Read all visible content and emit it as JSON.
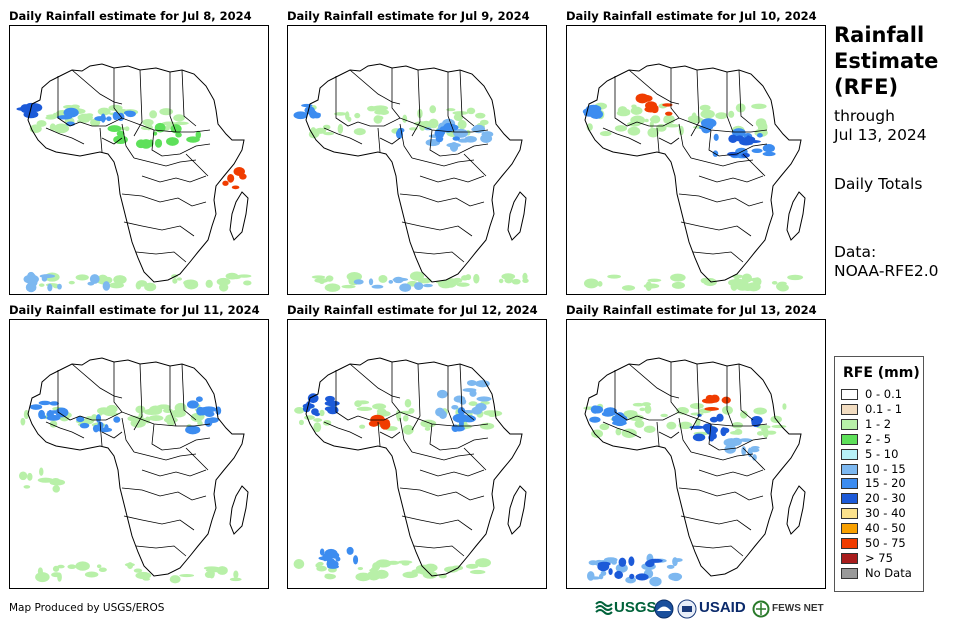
{
  "panels": [
    {
      "title": "Daily Rainfall estimate for Jul 8, 2024"
    },
    {
      "title": "Daily Rainfall estimate for Jul 9, 2024"
    },
    {
      "title": "Daily Rainfall estimate for Jul 10, 2024"
    },
    {
      "title": "Daily Rainfall estimate for Jul 11, 2024"
    },
    {
      "title": "Daily Rainfall estimate for Jul 12, 2024"
    },
    {
      "title": "Daily Rainfall estimate for Jul 13, 2024"
    }
  ],
  "side": {
    "title_line1": "Rainfall",
    "title_line2": "Estimate",
    "title_line3": "(RFE)",
    "through_label": "through",
    "through_date": "Jul 13, 2024",
    "totals_label": "Daily Totals",
    "data_label": "Data:",
    "data_source": "NOAA-RFE2.0"
  },
  "legend": {
    "title": "RFE (mm)",
    "items": [
      {
        "label": "0 - 0.1",
        "color": "#ffffff"
      },
      {
        "label": "0.1 - 1",
        "color": "#f2dcc0"
      },
      {
        "label": "1 - 2",
        "color": "#b8f0a8"
      },
      {
        "label": "2 - 5",
        "color": "#5ee05a"
      },
      {
        "label": "5 - 10",
        "color": "#b8f2f8"
      },
      {
        "label": "10 - 15",
        "color": "#7db8f0"
      },
      {
        "label": "15 - 20",
        "color": "#3c8cf0"
      },
      {
        "label": "20 - 30",
        "color": "#1c5ad8"
      },
      {
        "label": "30 - 40",
        "color": "#fce28c"
      },
      {
        "label": "40 - 50",
        "color": "#f8a000"
      },
      {
        "label": "50 - 75",
        "color": "#f03c00"
      },
      {
        "label": "> 75",
        "color": "#a81c1c"
      },
      {
        "label": "No Data",
        "color": "#999999"
      }
    ]
  },
  "footer": {
    "credit": "Map Produced by USGS/EROS"
  },
  "logos": {
    "usgs": "USGS",
    "usaid": "USAID",
    "fewsnet": "FEWS NET"
  }
}
